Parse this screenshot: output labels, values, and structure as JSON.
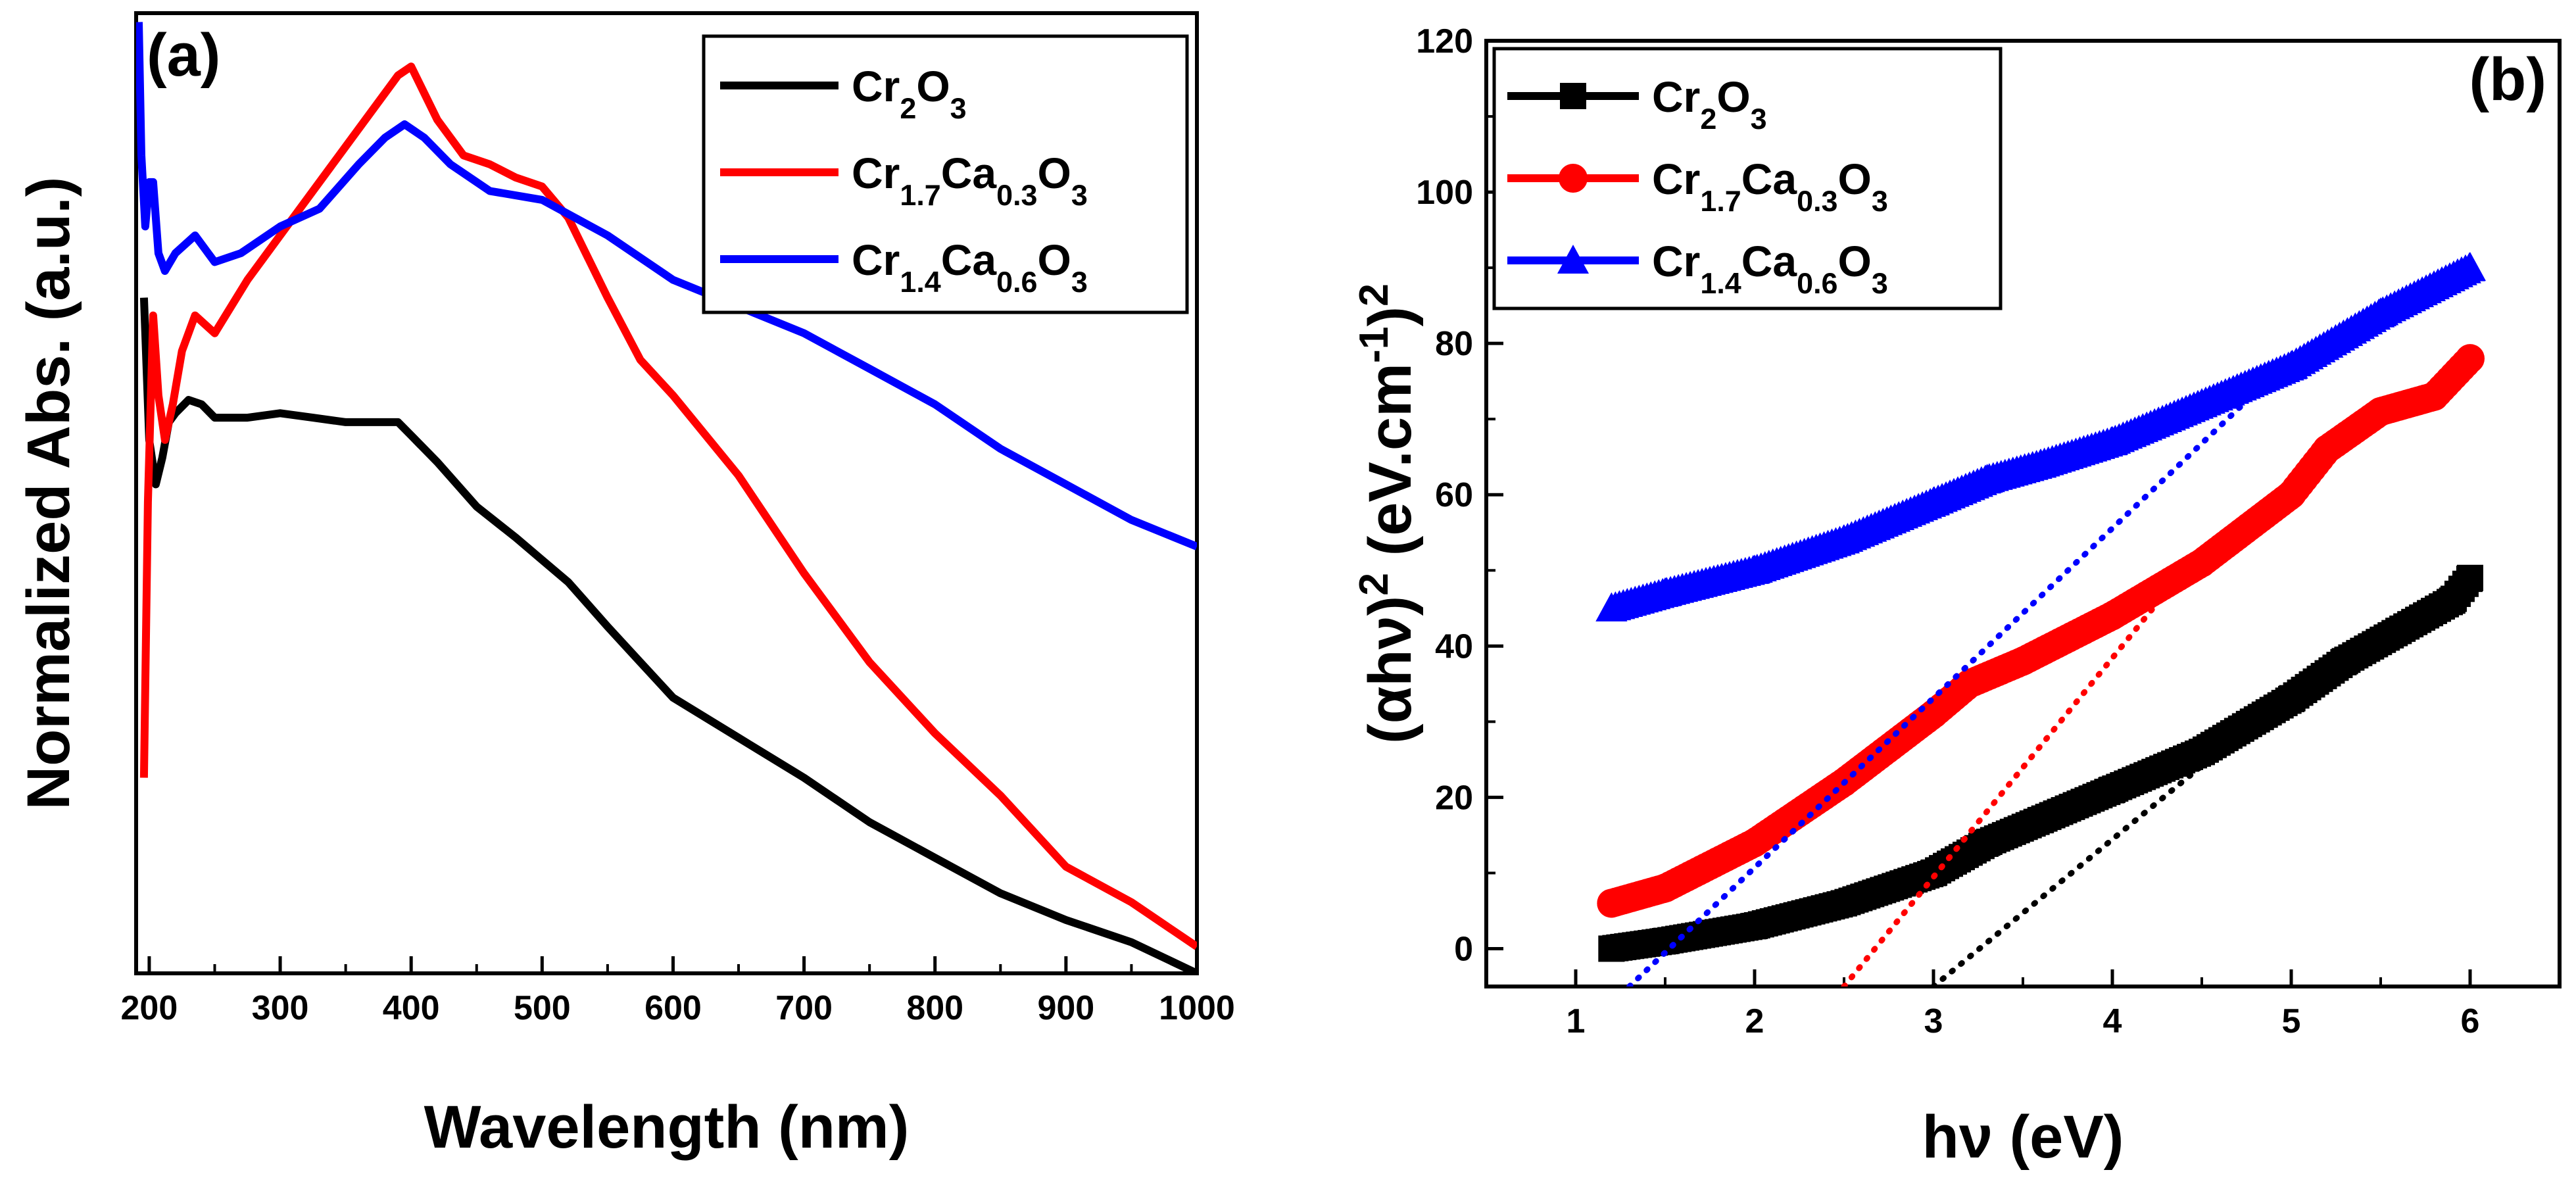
{
  "colors": {
    "black": "#000000",
    "red": "#ff0000",
    "blue": "#0000ff"
  },
  "chart_data": [
    {
      "type": "line",
      "panel": "(a)",
      "title": "",
      "xlabel": "Wavelength (nm)",
      "ylabel": "Normalized Abs. (a.u.)",
      "xlim": [
        190,
        1000
      ],
      "ylim": [
        0,
        1.08
      ],
      "xticks": [
        200,
        300,
        400,
        500,
        600,
        700,
        800,
        900,
        1000
      ],
      "y_ticks_shown": false,
      "legend_position": "top-right",
      "series": [
        {
          "name": "Cr2O3",
          "label_parts": [
            [
              "Cr",
              "n"
            ],
            [
              "2",
              "sub"
            ],
            [
              "O",
              "n"
            ],
            [
              "3",
              "sub"
            ]
          ],
          "color": "#000000",
          "x": [
            196,
            200,
            205,
            210,
            215,
            220,
            230,
            240,
            250,
            275,
            300,
            325,
            350,
            375,
            390,
            400,
            420,
            450,
            480,
            500,
            520,
            550,
            575,
            600,
            650,
            700,
            750,
            800,
            850,
            900,
            950,
            1000
          ],
          "y": [
            0.76,
            0.6,
            0.55,
            0.58,
            0.62,
            0.63,
            0.645,
            0.64,
            0.625,
            0.625,
            0.63,
            0.625,
            0.62,
            0.62,
            0.62,
            0.605,
            0.575,
            0.525,
            0.49,
            0.465,
            0.44,
            0.39,
            0.35,
            0.31,
            0.265,
            0.22,
            0.17,
            0.13,
            0.09,
            0.06,
            0.035,
            0.0
          ]
        },
        {
          "name": "Cr1.7Ca0.3O3",
          "label_parts": [
            [
              "Cr",
              "n"
            ],
            [
              "1.7",
              "sub"
            ],
            [
              "Ca",
              "n"
            ],
            [
              "0.3",
              "sub"
            ],
            [
              "O",
              "n"
            ],
            [
              "3",
              "sub"
            ]
          ],
          "color": "#ff0000",
          "x": [
            196,
            199,
            203,
            207,
            212,
            218,
            225,
            235,
            250,
            275,
            300,
            325,
            350,
            375,
            390,
            400,
            420,
            440,
            460,
            480,
            500,
            520,
            550,
            575,
            600,
            650,
            700,
            750,
            800,
            850,
            900,
            950,
            1000
          ],
          "y": [
            0.22,
            0.53,
            0.74,
            0.65,
            0.6,
            0.64,
            0.7,
            0.74,
            0.72,
            0.78,
            0.83,
            0.88,
            0.93,
            0.98,
            1.01,
            1.02,
            0.96,
            0.92,
            0.91,
            0.895,
            0.885,
            0.85,
            0.76,
            0.69,
            0.65,
            0.56,
            0.45,
            0.35,
            0.27,
            0.2,
            0.12,
            0.08,
            0.03
          ]
        },
        {
          "name": "Cr1.4Ca0.6O3",
          "label_parts": [
            [
              "Cr",
              "n"
            ],
            [
              "1.4",
              "sub"
            ],
            [
              "Ca",
              "n"
            ],
            [
              "0.6",
              "sub"
            ],
            [
              "O",
              "n"
            ],
            [
              "3",
              "sub"
            ]
          ],
          "color": "#0000ff",
          "x": [
            192,
            194,
            197,
            200,
            203,
            207,
            212,
            220,
            235,
            250,
            270,
            300,
            330,
            360,
            380,
            395,
            410,
            430,
            460,
            500,
            550,
            600,
            650,
            700,
            750,
            800,
            850,
            900,
            950,
            1000
          ],
          "y": [
            1.07,
            0.92,
            0.84,
            0.89,
            0.89,
            0.81,
            0.79,
            0.81,
            0.83,
            0.8,
            0.81,
            0.84,
            0.86,
            0.91,
            0.94,
            0.955,
            0.94,
            0.91,
            0.88,
            0.87,
            0.83,
            0.78,
            0.75,
            0.72,
            0.68,
            0.64,
            0.59,
            0.55,
            0.51,
            0.48
          ]
        }
      ]
    },
    {
      "type": "scatter",
      "panel": "(b)",
      "title": "",
      "xlabel": "hν (eV)",
      "ylabel_parts": [
        [
          "(αhν)",
          "n"
        ],
        [
          "2",
          "sup"
        ],
        [
          " (eV.cm",
          "n"
        ],
        [
          "-1",
          "sup"
        ],
        [
          ")",
          "n"
        ],
        [
          "2",
          "sup"
        ]
      ],
      "xlim": [
        0.5,
        6.5
      ],
      "ylim": [
        -5,
        120
      ],
      "xticks": [
        1,
        2,
        3,
        4,
        5,
        6
      ],
      "yticks": [
        0,
        20,
        40,
        60,
        80,
        100,
        120
      ],
      "legend_position": "top-left",
      "series": [
        {
          "name": "Cr2O3",
          "label_parts": [
            [
              "Cr",
              "n"
            ],
            [
              "2",
              "sub"
            ],
            [
              "O",
              "n"
            ],
            [
              "3",
              "sub"
            ]
          ],
          "color": "#000000",
          "marker": "square",
          "x": [
            1.2,
            1.5,
            2.0,
            2.5,
            3.0,
            3.3,
            3.6,
            4.0,
            4.5,
            5.0,
            5.3,
            5.6,
            5.9,
            6.0
          ],
          "y": [
            0,
            1,
            3,
            6,
            10,
            14,
            17,
            21,
            26,
            33,
            38,
            42,
            46,
            49
          ],
          "fit_line": {
            "x": [
              3.0,
              4.8
            ],
            "y": [
              -5,
              30
            ]
          }
        },
        {
          "name": "Cr1.7Ca0.3O3",
          "label_parts": [
            [
              "Cr",
              "n"
            ],
            [
              "1.7",
              "sub"
            ],
            [
              "Ca",
              "n"
            ],
            [
              "0.3",
              "sub"
            ],
            [
              "O",
              "n"
            ],
            [
              "3",
              "sub"
            ]
          ],
          "color": "#ff0000",
          "marker": "circle",
          "x": [
            1.2,
            1.5,
            2.0,
            2.5,
            3.0,
            3.2,
            3.5,
            4.0,
            4.5,
            5.0,
            5.2,
            5.5,
            5.8,
            6.0
          ],
          "y": [
            6,
            8,
            14,
            22,
            31,
            35,
            38,
            44,
            51,
            60,
            66,
            71,
            73,
            78
          ],
          "fit_line": {
            "x": [
              2.5,
              4.4
            ],
            "y": [
              -5,
              50
            ]
          }
        },
        {
          "name": "Cr1.4Ca0.6O3",
          "label_parts": [
            [
              "Cr",
              "n"
            ],
            [
              "1.4",
              "sub"
            ],
            [
              "Ca",
              "n"
            ],
            [
              "0.6",
              "sub"
            ],
            [
              "O",
              "n"
            ],
            [
              "3",
              "sub"
            ]
          ],
          "color": "#0000ff",
          "marker": "triangle",
          "x": [
            1.2,
            1.5,
            2.0,
            2.5,
            3.0,
            3.3,
            3.6,
            4.0,
            4.5,
            5.0,
            5.5,
            6.0
          ],
          "y": [
            45,
            47,
            50,
            54,
            59,
            62,
            64,
            67,
            72,
            77,
            84,
            90
          ],
          "fit_line": {
            "x": [
              1.3,
              5.0
            ],
            "y": [
              -5,
              78
            ]
          }
        }
      ]
    }
  ]
}
